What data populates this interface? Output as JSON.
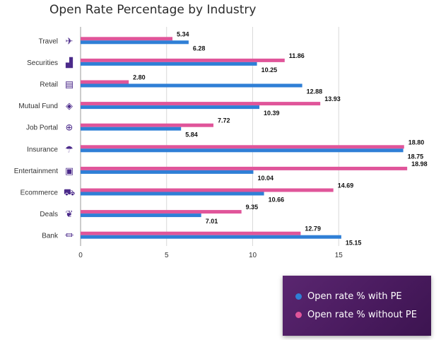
{
  "chart_data": {
    "type": "bar",
    "orientation": "horizontal",
    "title": "Open Rate Percentage by Industry",
    "xlabel": "",
    "ylabel": "",
    "xlim": [
      0,
      19
    ],
    "xticks": [
      0,
      5,
      10,
      15
    ],
    "grid": true,
    "legend_position": "bottom-right",
    "categories": [
      "Travel",
      "Securities",
      "Retail",
      "Mutual Fund",
      "Job Portal",
      "Insurance",
      "Entertainment",
      "Ecommerce",
      "Deals",
      "Bank"
    ],
    "category_icons": [
      "airplane-icon",
      "chart-growth-icon",
      "store-icon",
      "coins-hand-icon",
      "search-zoom-icon",
      "umbrella-icon",
      "image-frame-icon",
      "cart-icon",
      "handshake-icon",
      "bank-icon"
    ],
    "series": [
      {
        "name": "Open rate % without PE",
        "color": "#e0559a",
        "values": [
          5.34,
          11.86,
          2.8,
          13.93,
          7.72,
          18.8,
          18.98,
          14.69,
          9.35,
          12.79
        ]
      },
      {
        "name": "Open rate % with PE",
        "color": "#2f7fd6",
        "values": [
          6.28,
          10.25,
          12.88,
          10.39,
          5.84,
          18.75,
          10.04,
          10.66,
          7.01,
          15.15
        ]
      }
    ]
  },
  "legend": {
    "items": [
      {
        "label": "Open rate % with PE",
        "color": "#2f7fd6"
      },
      {
        "label": "Open rate % without PE",
        "color": "#e0559a"
      }
    ]
  }
}
